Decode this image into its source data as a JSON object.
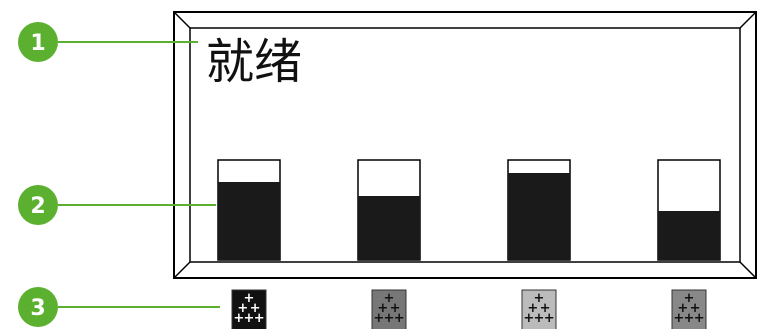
{
  "display": {
    "status_text": "就绪"
  },
  "callouts": [
    {
      "number": "1"
    },
    {
      "number": "2"
    },
    {
      "number": "3"
    }
  ],
  "supplies": [
    {
      "level": 0.78,
      "icon_shade": "#111111",
      "icon_glyph": "+"
    },
    {
      "level": 0.64,
      "icon_shade": "#777777",
      "icon_glyph": "+"
    },
    {
      "level": 0.87,
      "icon_shade": "#bbbbbb",
      "icon_glyph": "+"
    },
    {
      "level": 0.49,
      "icon_shade": "#888888",
      "icon_glyph": "+"
    }
  ],
  "colors": {
    "callout_green": "#5bb12f",
    "bar_fill": "#1a1a1a",
    "frame_outer": "#000000",
    "frame_inner": "#777777"
  }
}
